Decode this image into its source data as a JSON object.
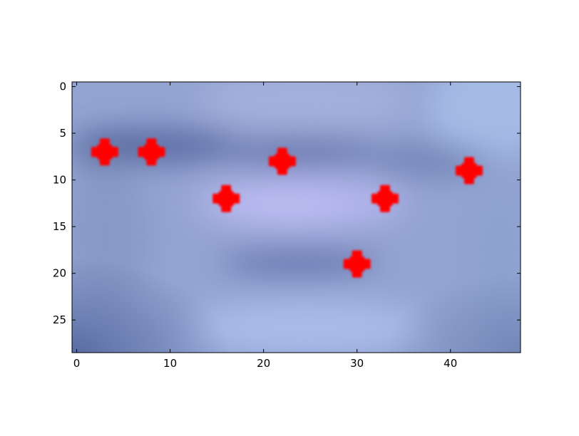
{
  "chart_data": {
    "type": "scatter",
    "title": "",
    "xlabel": "",
    "ylabel": "",
    "xlim": [
      -0.5,
      47.5
    ],
    "ylim": [
      28.5,
      -0.5
    ],
    "y_inverted": true,
    "x_ticks": [
      0,
      10,
      20,
      30,
      40
    ],
    "y_ticks": [
      0,
      5,
      10,
      15,
      20,
      25
    ],
    "background": "blurred blue-grey image (mouth region)",
    "marker": "plus",
    "marker_color": "#ff0000",
    "grid": false,
    "series": [
      {
        "points": [
          {
            "x": 3,
            "y": 7
          },
          {
            "x": 8,
            "y": 7
          },
          {
            "x": 22,
            "y": 8
          },
          {
            "x": 42,
            "y": 9
          },
          {
            "x": 16,
            "y": 12
          },
          {
            "x": 33,
            "y": 12
          },
          {
            "x": 30,
            "y": 19
          }
        ]
      }
    ]
  }
}
